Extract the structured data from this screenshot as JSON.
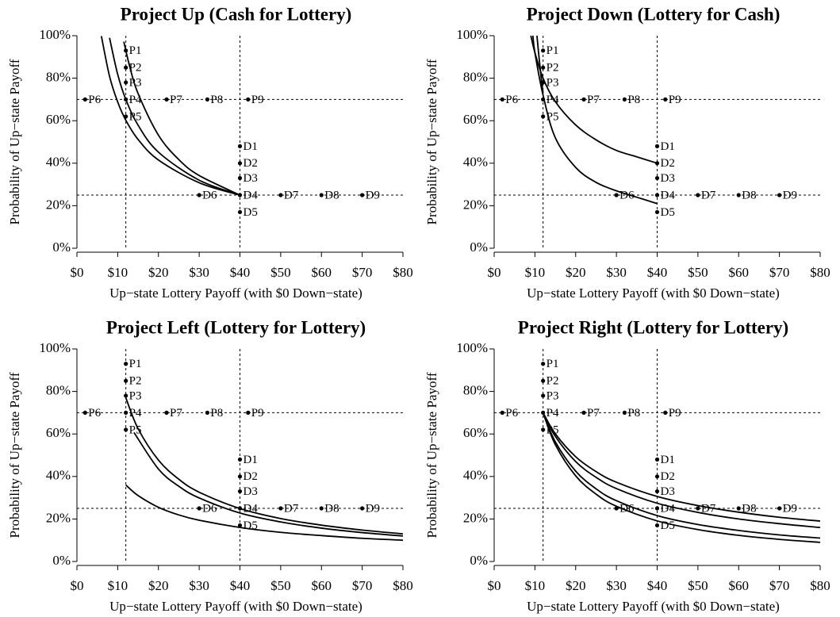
{
  "chart_data": [
    {
      "type": "scatter",
      "title": "Project Up (Cash for Lottery)",
      "x_label": "Up−state Lottery Payoff (with $0 Down−state)",
      "y_label": "Probability of Up−state Payoff",
      "xlim": [
        0,
        80
      ],
      "ylim": [
        0,
        100
      ],
      "xticks": [
        {
          "value": 0,
          "label": "$0"
        },
        {
          "value": 10,
          "label": "$10"
        },
        {
          "value": 20,
          "label": "$20"
        },
        {
          "value": 30,
          "label": "$30"
        },
        {
          "value": 40,
          "label": "$40"
        },
        {
          "value": 50,
          "label": "$50"
        },
        {
          "value": 60,
          "label": "$60"
        },
        {
          "value": 70,
          "label": "$70"
        },
        {
          "value": 80,
          "label": "$80"
        }
      ],
      "yticks": [
        {
          "value": 0,
          "label": "0%"
        },
        {
          "value": 20,
          "label": "20%"
        },
        {
          "value": 40,
          "label": "40%"
        },
        {
          "value": 60,
          "label": "60%"
        },
        {
          "value": 80,
          "label": "80%"
        },
        {
          "value": 100,
          "label": "100%"
        }
      ],
      "color": "#000000",
      "vlines": [
        12,
        40
      ],
      "hlines": [
        70,
        25
      ],
      "points": {
        "labels": [
          "P1",
          "P2",
          "P3",
          "P4",
          "P5",
          "P6",
          "P7",
          "P8",
          "P9",
          "D1",
          "D2",
          "D3",
          "D4",
          "D5",
          "D6",
          "D7",
          "D8",
          "D9"
        ],
        "x": [
          12,
          12,
          12,
          12,
          12,
          2,
          22,
          32,
          42,
          40,
          40,
          40,
          40,
          40,
          30,
          50,
          60,
          70
        ],
        "values": [
          93,
          85,
          78,
          70,
          62,
          70,
          70,
          70,
          70,
          48,
          40,
          33,
          25,
          17,
          25,
          25,
          25,
          25
        ]
      },
      "curves": [
        {
          "x": [
            11.5,
            13,
            15,
            20,
            25,
            30,
            40
          ],
          "values": [
            97.2,
            85.1,
            72.8,
            53.2,
            41.7,
            34.2,
            25
          ]
        },
        {
          "x": [
            8,
            10,
            12,
            15,
            20,
            30,
            40
          ],
          "values": [
            99,
            81.8,
            70,
            57.9,
            45.2,
            32,
            25
          ]
        },
        {
          "x": [
            6,
            8,
            10,
            12,
            15,
            20,
            30,
            40
          ],
          "values": [
            99.8,
            80.9,
            68.8,
            60.2,
            51.2,
            41.5,
            30.8,
            25
          ]
        }
      ]
    },
    {
      "type": "scatter",
      "title": "Project Down (Lottery for Cash)",
      "x_label": "Up−state Lottery Payoff (with $0 Down−state)",
      "y_label": "Probability of Up−state Payoff",
      "xlim": [
        0,
        80
      ],
      "ylim": [
        0,
        100
      ],
      "xticks": [
        {
          "value": 0,
          "label": "$0"
        },
        {
          "value": 10,
          "label": "$10"
        },
        {
          "value": 20,
          "label": "$20"
        },
        {
          "value": 30,
          "label": "$30"
        },
        {
          "value": 40,
          "label": "$40"
        },
        {
          "value": 50,
          "label": "$50"
        },
        {
          "value": 60,
          "label": "$60"
        },
        {
          "value": 70,
          "label": "$70"
        },
        {
          "value": 80,
          "label": "$80"
        }
      ],
      "yticks": [
        {
          "value": 0,
          "label": "0%"
        },
        {
          "value": 20,
          "label": "20%"
        },
        {
          "value": 40,
          "label": "40%"
        },
        {
          "value": 60,
          "label": "60%"
        },
        {
          "value": 80,
          "label": "80%"
        },
        {
          "value": 100,
          "label": "100%"
        }
      ],
      "color": "#000000",
      "vlines": [
        12,
        40
      ],
      "hlines": [
        70,
        25
      ],
      "points": {
        "labels": [
          "P1",
          "P2",
          "P3",
          "P4",
          "P5",
          "P6",
          "P7",
          "P8",
          "P9",
          "D1",
          "D2",
          "D3",
          "D4",
          "D5",
          "D6",
          "D7",
          "D8",
          "D9"
        ],
        "x": [
          12,
          12,
          12,
          12,
          12,
          2,
          22,
          32,
          42,
          40,
          40,
          40,
          40,
          40,
          30,
          50,
          60,
          70
        ],
        "values": [
          93,
          85,
          78,
          70,
          62,
          70,
          70,
          70,
          70,
          48,
          40,
          33,
          25,
          17,
          25,
          25,
          25,
          25
        ]
      },
      "curves": [
        {
          "x": [
            9,
            10,
            12,
            15,
            20,
            25,
            30,
            35,
            40
          ],
          "values": [
            100,
            92,
            80,
            69,
            58,
            51,
            46,
            43,
            40
          ]
        },
        {
          "x": [
            9.5,
            10,
            12,
            15,
            20,
            25,
            30,
            35,
            40
          ],
          "values": [
            100,
            92,
            72,
            52,
            38,
            31,
            27,
            24,
            21
          ]
        },
        {
          "x": [
            10.5,
            11,
            11.5,
            12
          ],
          "values": [
            100,
            90,
            81,
            73
          ]
        }
      ]
    },
    {
      "type": "scatter",
      "title": "Project Left (Lottery for Lottery)",
      "x_label": "Up−state Lottery Payoff (with $0 Down−state)",
      "y_label": "Probability of Up−state Payoff",
      "xlim": [
        0,
        80
      ],
      "ylim": [
        0,
        100
      ],
      "xticks": [
        {
          "value": 0,
          "label": "$0"
        },
        {
          "value": 10,
          "label": "$10"
        },
        {
          "value": 20,
          "label": "$20"
        },
        {
          "value": 30,
          "label": "$30"
        },
        {
          "value": 40,
          "label": "$40"
        },
        {
          "value": 50,
          "label": "$50"
        },
        {
          "value": 60,
          "label": "$60"
        },
        {
          "value": 70,
          "label": "$70"
        },
        {
          "value": 80,
          "label": "$80"
        }
      ],
      "yticks": [
        {
          "value": 0,
          "label": "0%"
        },
        {
          "value": 20,
          "label": "20%"
        },
        {
          "value": 40,
          "label": "40%"
        },
        {
          "value": 60,
          "label": "60%"
        },
        {
          "value": 80,
          "label": "80%"
        },
        {
          "value": 100,
          "label": "100%"
        }
      ],
      "color": "#000000",
      "vlines": [
        12,
        40
      ],
      "hlines": [
        70,
        25
      ],
      "points": {
        "labels": [
          "P1",
          "P2",
          "P3",
          "P4",
          "P5",
          "P6",
          "P7",
          "P8",
          "P9",
          "D1",
          "D2",
          "D3",
          "D4",
          "D5",
          "D6",
          "D7",
          "D8",
          "D9"
        ],
        "x": [
          12,
          12,
          12,
          12,
          12,
          2,
          22,
          32,
          42,
          40,
          40,
          40,
          40,
          40,
          30,
          50,
          60,
          70
        ],
        "values": [
          93,
          85,
          78,
          70,
          62,
          70,
          70,
          70,
          70,
          48,
          40,
          33,
          25,
          17,
          25,
          25,
          25,
          25
        ]
      },
      "curves": [
        {
          "x": [
            12,
            15,
            20,
            25,
            30,
            40,
            50,
            60,
            70,
            80
          ],
          "values": [
            77,
            62.5,
            47.7,
            38.7,
            32.6,
            24.9,
            20.2,
            17.1,
            14.8,
            13
          ]
        },
        {
          "x": [
            14,
            20,
            25,
            30,
            40,
            50,
            60,
            70,
            80
          ],
          "values": [
            60.7,
            43.5,
            35.4,
            29.9,
            22.8,
            18.6,
            15.7,
            13.6,
            12
          ]
        },
        {
          "x": [
            12,
            15,
            20,
            25,
            30,
            40,
            50,
            60,
            70,
            80
          ],
          "values": [
            36,
            31,
            25.5,
            21.9,
            19.4,
            16,
            13.7,
            12.2,
            10.9,
            10
          ]
        }
      ]
    },
    {
      "type": "scatter",
      "title": "Project Right (Lottery for Lottery)",
      "x_label": "Up−state Lottery Payoff (with $0 Down−state)",
      "y_label": "Probability of Up−state Payoff",
      "xlim": [
        0,
        80
      ],
      "ylim": [
        0,
        100
      ],
      "xticks": [
        {
          "value": 0,
          "label": "$0"
        },
        {
          "value": 10,
          "label": "$10"
        },
        {
          "value": 20,
          "label": "$20"
        },
        {
          "value": 30,
          "label": "$30"
        },
        {
          "value": 40,
          "label": "$40"
        },
        {
          "value": 50,
          "label": "$50"
        },
        {
          "value": 60,
          "label": "$60"
        },
        {
          "value": 70,
          "label": "$70"
        },
        {
          "value": 80,
          "label": "$80"
        }
      ],
      "yticks": [
        {
          "value": 0,
          "label": "0%"
        },
        {
          "value": 20,
          "label": "20%"
        },
        {
          "value": 40,
          "label": "40%"
        },
        {
          "value": 60,
          "label": "60%"
        },
        {
          "value": 80,
          "label": "80%"
        },
        {
          "value": 100,
          "label": "100%"
        }
      ],
      "color": "#000000",
      "vlines": [
        12,
        40
      ],
      "hlines": [
        70,
        25
      ],
      "points": {
        "labels": [
          "P1",
          "P2",
          "P3",
          "P4",
          "P5",
          "P6",
          "P7",
          "P8",
          "P9",
          "D1",
          "D2",
          "D3",
          "D4",
          "D5",
          "D6",
          "D7",
          "D8",
          "D9"
        ],
        "x": [
          12,
          12,
          12,
          12,
          12,
          2,
          22,
          32,
          42,
          40,
          40,
          40,
          40,
          40,
          30,
          50,
          60,
          70
        ],
        "values": [
          93,
          85,
          78,
          70,
          62,
          70,
          70,
          70,
          70,
          48,
          40,
          33,
          25,
          17,
          25,
          25,
          25,
          25
        ]
      },
      "curves": [
        {
          "x": [
            12,
            15,
            20,
            25,
            30,
            40,
            50,
            60,
            70,
            80
          ],
          "values": [
            70,
            60.1,
            49.3,
            42.3,
            37.3,
            30.6,
            26.3,
            23.2,
            20.8,
            19
          ]
        },
        {
          "x": [
            12,
            15,
            20,
            25,
            30,
            40,
            50,
            60,
            70,
            80
          ],
          "values": [
            70,
            58.9,
            47,
            39.6,
            34.3,
            27.4,
            23.1,
            20,
            17.8,
            16
          ]
        },
        {
          "x": [
            12,
            15,
            20,
            25,
            30,
            40,
            50,
            60,
            70,
            80
          ],
          "values": [
            70,
            56.3,
            42.5,
            34.2,
            28.6,
            21.6,
            17.4,
            14.6,
            12.5,
            11
          ]
        },
        {
          "x": [
            12,
            15,
            20,
            25,
            30,
            40,
            50,
            60,
            70,
            80
          ],
          "values": [
            70,
            55,
            40.3,
            31.7,
            26,
            19.1,
            15,
            12.3,
            10.4,
            9
          ]
        }
      ]
    }
  ]
}
